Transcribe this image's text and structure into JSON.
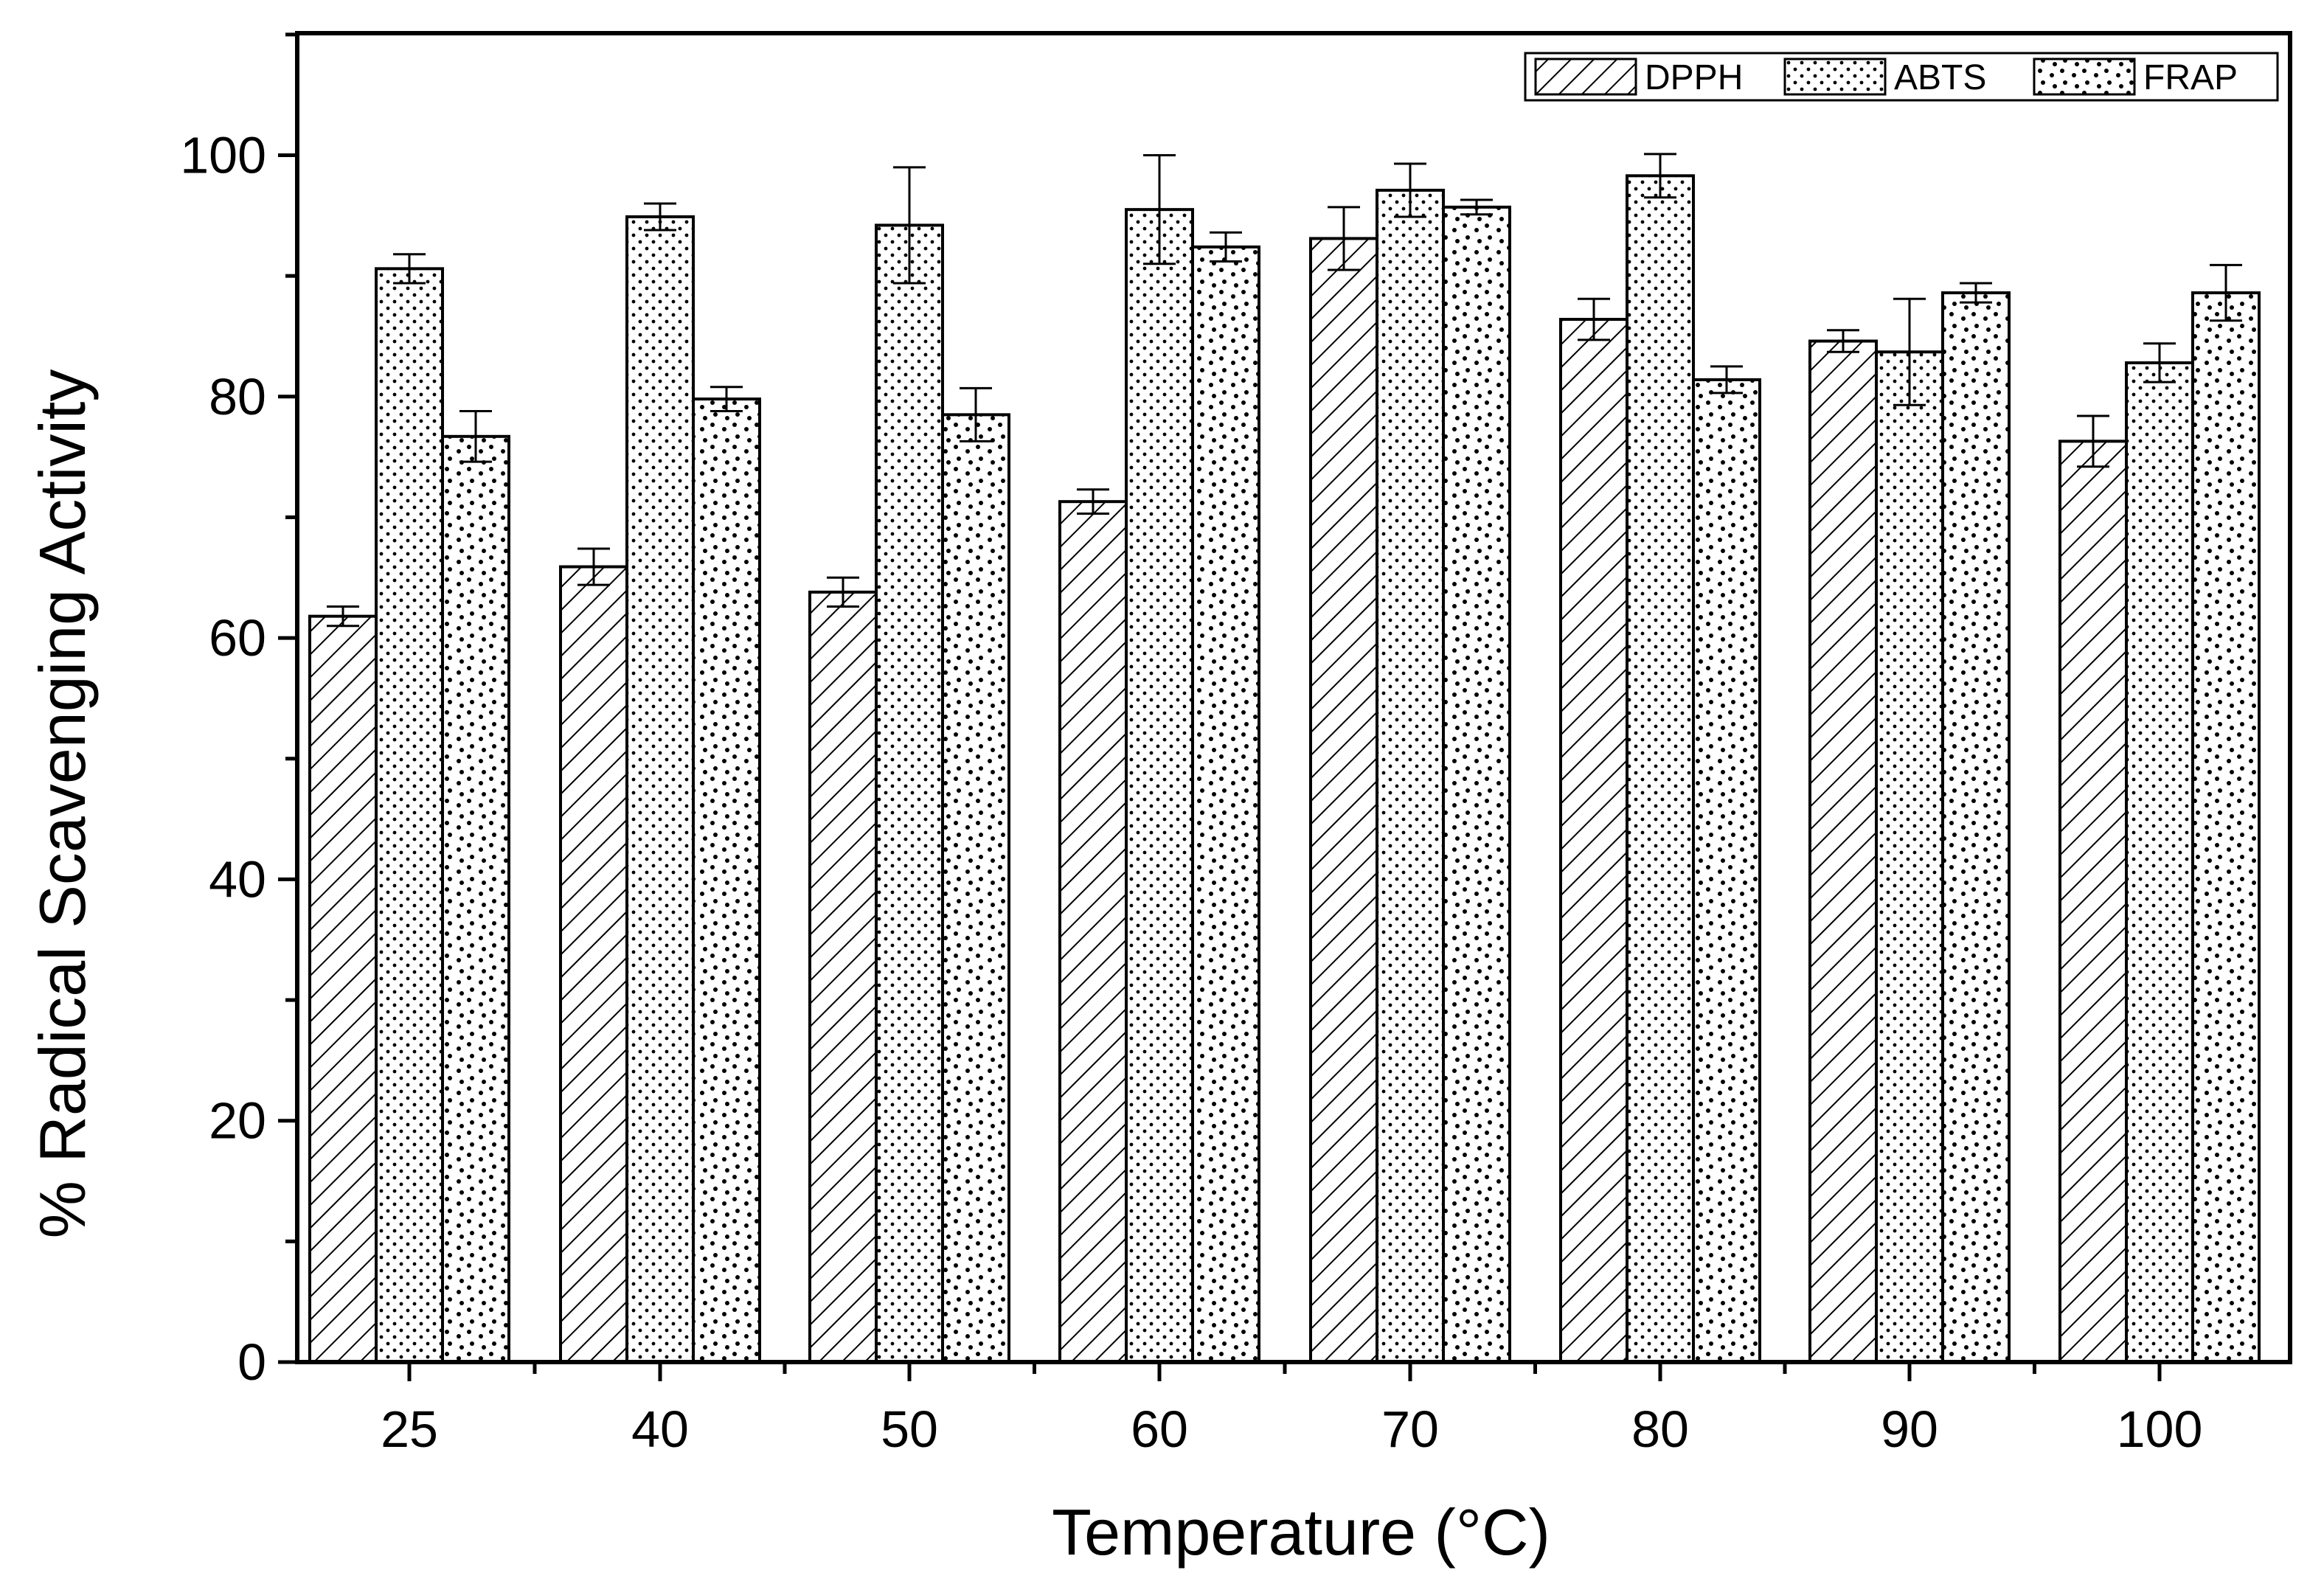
{
  "chart_data": {
    "type": "bar",
    "title": "",
    "xlabel": "Temperature (°C)",
    "ylabel": "% Radical Scavenging Activity",
    "categories": [
      "25",
      "40",
      "50",
      "60",
      "70",
      "80",
      "90",
      "100"
    ],
    "ylim": [
      0,
      110
    ],
    "yticks": [
      0,
      20,
      40,
      60,
      80,
      100
    ],
    "yticks_labels": [
      "0",
      "20",
      "40",
      "60",
      "80",
      "100"
    ],
    "legend_position": "top-right",
    "grid": false,
    "series": [
      {
        "name": "DPPH",
        "pattern": "diagonal-hatch",
        "values": [
          61.8,
          65.9,
          63.8,
          71.3,
          93.1,
          86.4,
          84.6,
          76.3
        ],
        "errors": [
          0.8,
          1.5,
          1.2,
          1.0,
          2.6,
          1.7,
          0.9,
          2.1
        ]
      },
      {
        "name": "ABTS",
        "pattern": "fine-dots",
        "values": [
          90.6,
          94.9,
          94.2,
          95.5,
          97.1,
          98.3,
          83.7,
          82.8
        ],
        "errors": [
          1.2,
          1.1,
          4.8,
          4.5,
          2.2,
          1.8,
          4.4,
          1.6
        ]
      },
      {
        "name": "FRAP",
        "pattern": "sparse-dots",
        "values": [
          76.7,
          79.8,
          78.5,
          92.4,
          95.7,
          81.4,
          88.6,
          88.6
        ],
        "errors": [
          2.1,
          1.0,
          2.2,
          1.2,
          0.6,
          1.1,
          0.8,
          2.3
        ]
      }
    ]
  },
  "colors": {
    "axis": "#000000",
    "bar_fill": "#ffffff",
    "pattern": "#000000"
  }
}
